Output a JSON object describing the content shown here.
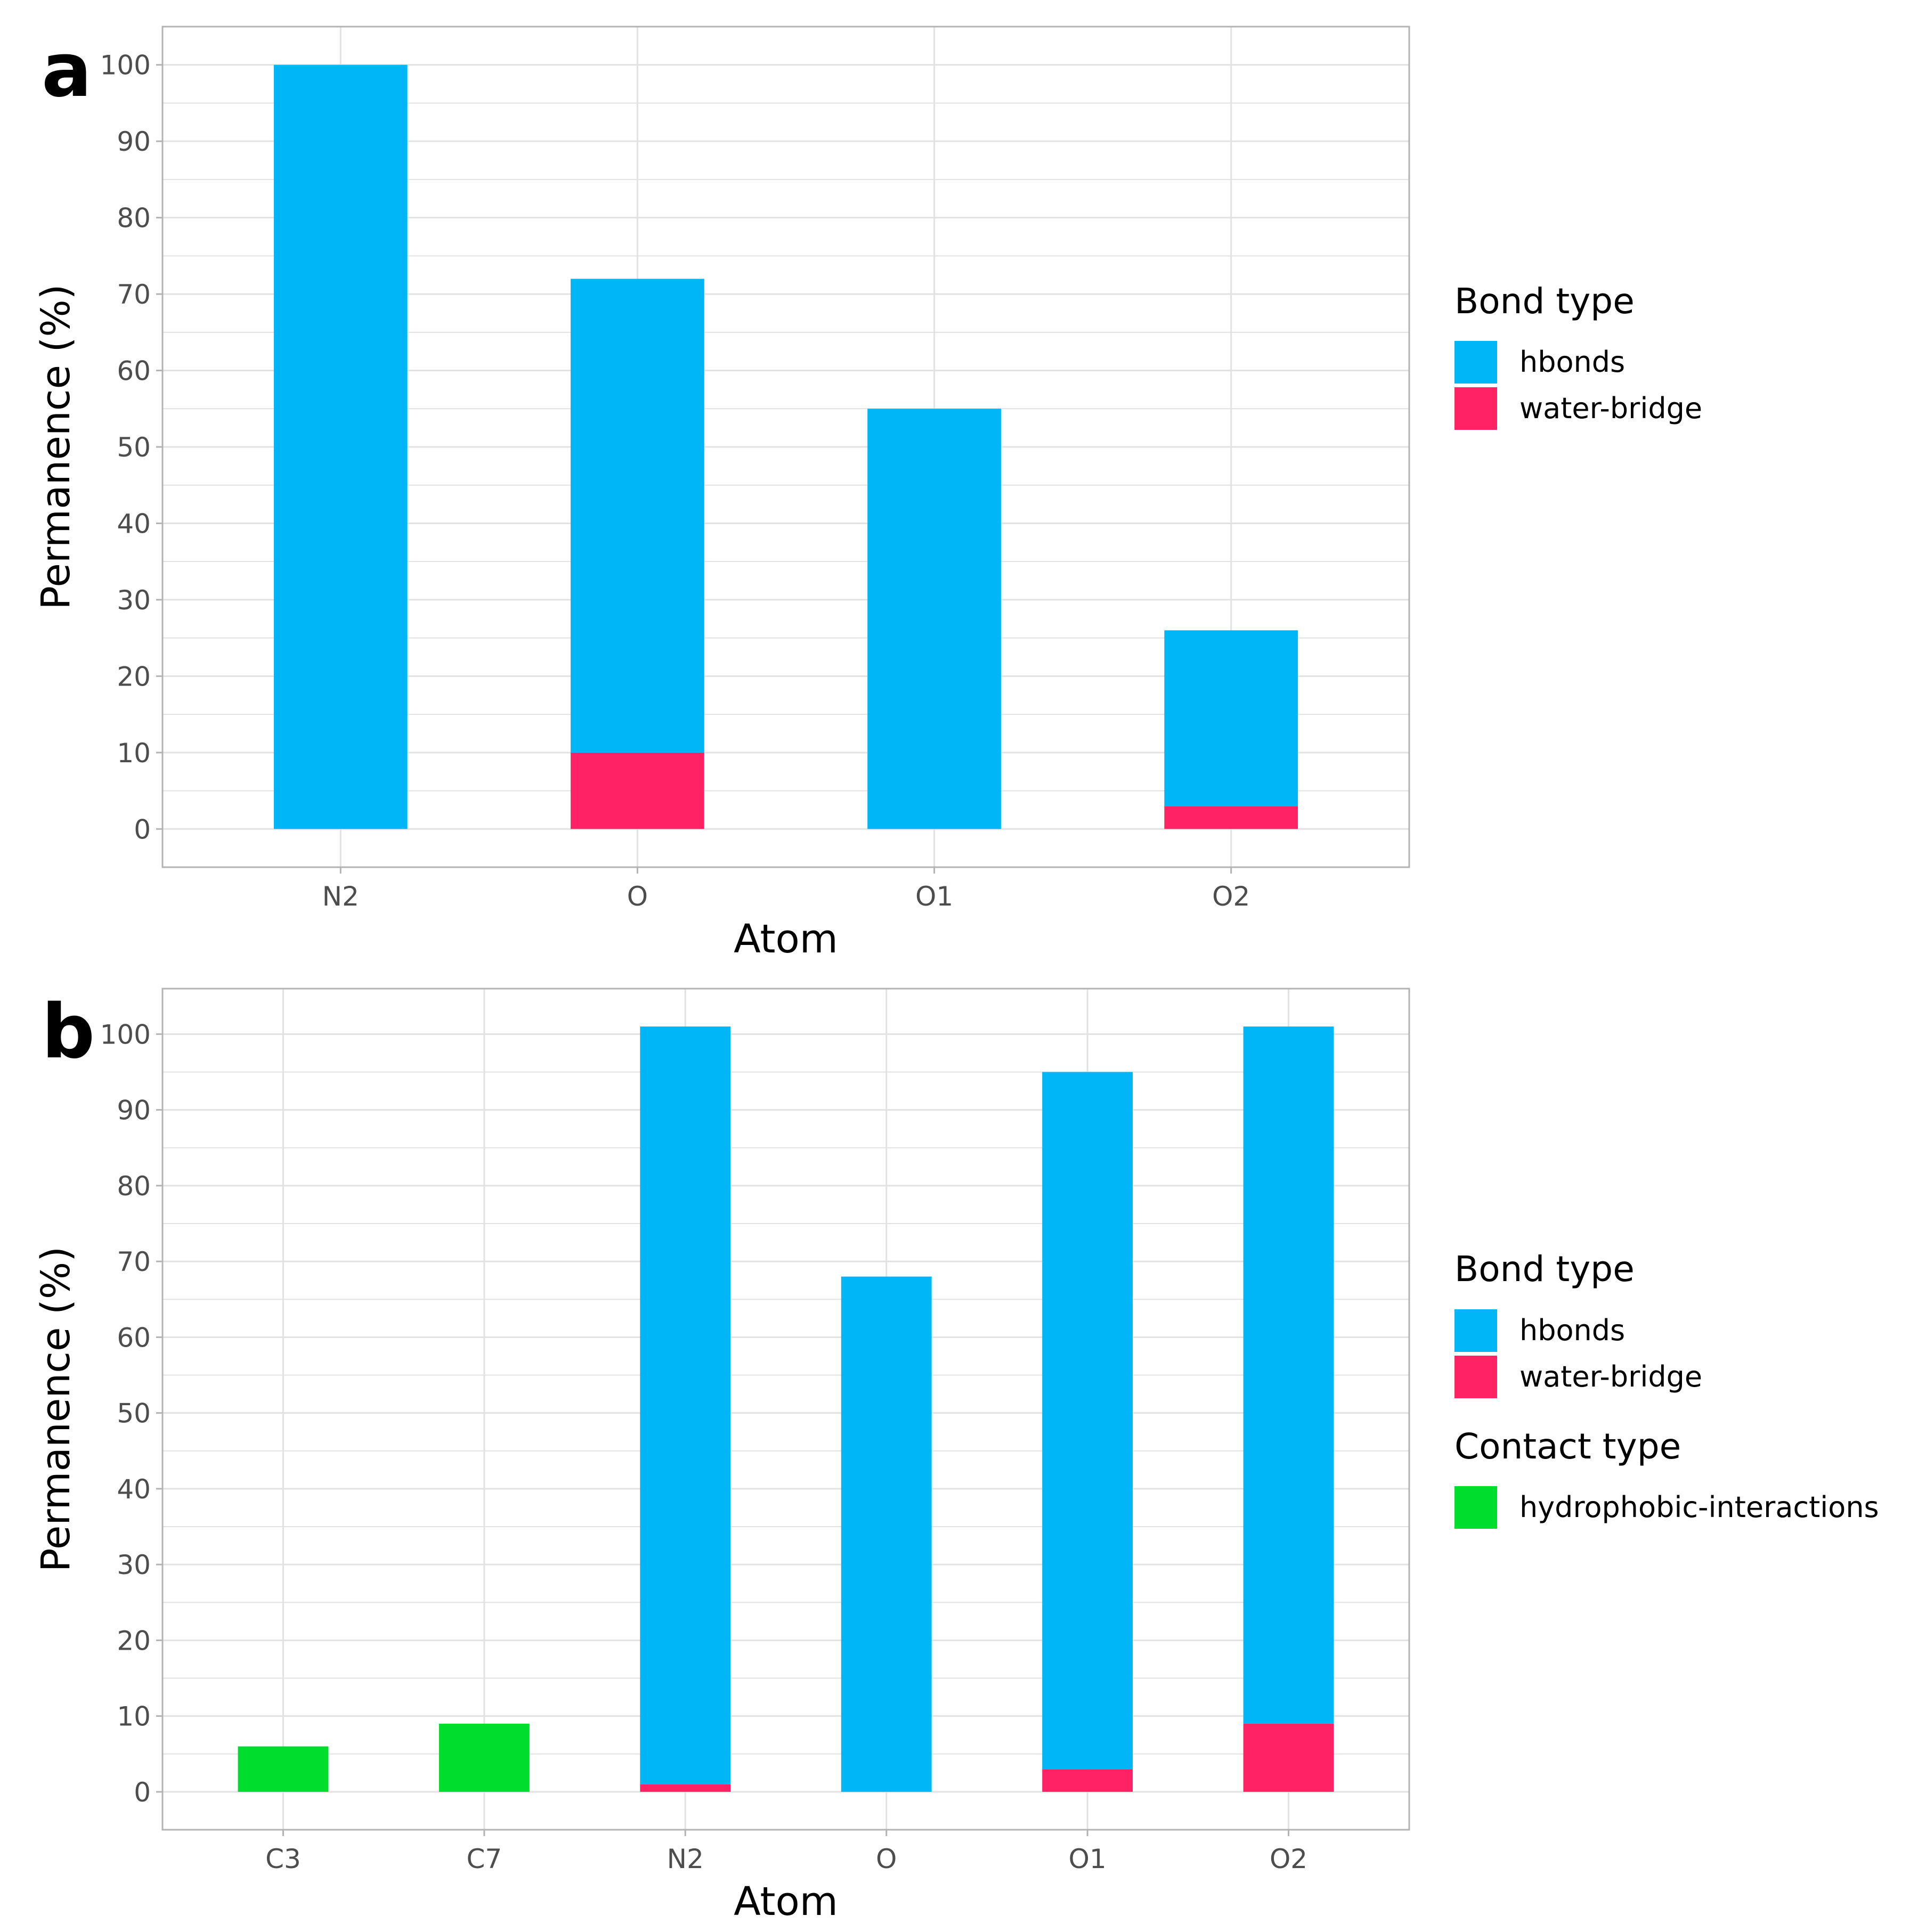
{
  "colors": {
    "hbonds": "#00B6F6",
    "water-bridge": "#FF2366",
    "hydrophobic-interactions": "#00DD2C",
    "grid": "#e2e2e2",
    "panel_border": "#b3b3b3",
    "tick_text": "#4d4d4d",
    "title_text": "#000000"
  },
  "chart_data": [
    {
      "panel_label": "a",
      "type": "bar",
      "stacked": true,
      "title": "",
      "xlabel": "Atom",
      "ylabel": "Permanence (%)",
      "categories": [
        "N2",
        "O",
        "O1",
        "O2"
      ],
      "ylim": [
        -5,
        105
      ],
      "yticks": [
        0,
        10,
        20,
        30,
        40,
        50,
        60,
        70,
        80,
        90,
        100
      ],
      "grid": true,
      "series": [
        {
          "name": "water-bridge",
          "legend_group": "Bond type",
          "values": [
            0,
            10,
            0,
            3
          ]
        },
        {
          "name": "hbonds",
          "legend_group": "Bond type",
          "values": [
            100,
            62,
            55,
            23
          ]
        }
      ],
      "legend": {
        "position": "right",
        "groups": [
          {
            "title": "Bond type",
            "items": [
              "hbonds",
              "water-bridge"
            ]
          }
        ]
      }
    },
    {
      "panel_label": "b",
      "type": "bar",
      "stacked": true,
      "title": "",
      "xlabel": "Atom",
      "ylabel": "Permanence (%)",
      "categories": [
        "C3",
        "C7",
        "N2",
        "O",
        "O1",
        "O2"
      ],
      "ylim": [
        -5,
        106
      ],
      "yticks": [
        0,
        10,
        20,
        30,
        40,
        50,
        60,
        70,
        80,
        90,
        100
      ],
      "grid": true,
      "series": [
        {
          "name": "hydrophobic-interactions",
          "legend_group": "Contact type",
          "values": [
            6,
            9,
            0,
            0,
            0,
            0
          ]
        },
        {
          "name": "water-bridge",
          "legend_group": "Bond type",
          "values": [
            0,
            0,
            1,
            0,
            3,
            9
          ]
        },
        {
          "name": "hbonds",
          "legend_group": "Bond type",
          "values": [
            0,
            0,
            100,
            68,
            92,
            92
          ]
        }
      ],
      "legend": {
        "position": "right",
        "groups": [
          {
            "title": "Bond type",
            "items": [
              "hbonds",
              "water-bridge"
            ]
          },
          {
            "title": "Contact type",
            "items": [
              "hydrophobic-interactions"
            ]
          }
        ]
      }
    }
  ]
}
